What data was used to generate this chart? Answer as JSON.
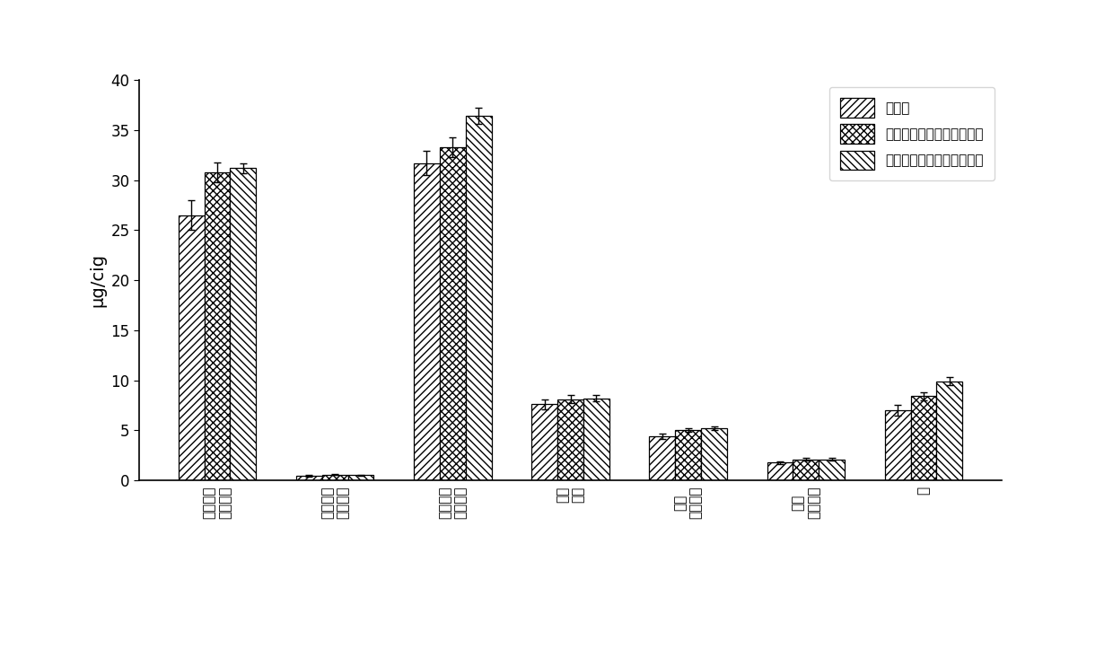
{
  "categories": [
    "苯二甲酬\n对苯二酔",
    "苯二甲酬\n对秋寅酔",
    "苯二甲酬\n对甲苯酔",
    "苯二\n甲酔",
    "苯二\n对苯二酔",
    "苯二\n对甲苯酔",
    "氨"
  ],
  "series": [
    {
      "name": "单滤片",
      "values": [
        26.5,
        0.45,
        31.7,
        7.6,
        4.4,
        1.75,
        7.0
      ],
      "errors": [
        1.5,
        0.05,
        1.2,
        0.5,
        0.3,
        0.15,
        0.5
      ]
    },
    {
      "name": "双滤片（预处理滤片后置）",
      "values": [
        30.8,
        0.55,
        33.3,
        8.1,
        5.0,
        2.1,
        8.4
      ],
      "errors": [
        1.0,
        0.05,
        1.0,
        0.4,
        0.2,
        0.15,
        0.4
      ]
    },
    {
      "name": "双滤片（预处理滤片前置）",
      "values": [
        31.2,
        0.52,
        36.4,
        8.2,
        5.2,
        2.1,
        9.9
      ],
      "errors": [
        0.5,
        0.05,
        0.8,
        0.3,
        0.2,
        0.1,
        0.4
      ]
    }
  ],
  "ylabel": "μg/cig",
  "ylim": [
    0,
    40
  ],
  "yticks": [
    0,
    5,
    10,
    15,
    20,
    25,
    30,
    35,
    40
  ],
  "bar_width": 0.22,
  "hatch_patterns": [
    "////",
    "xxxx",
    "\\\\\\\\"
  ],
  "bar_facecolor": "white",
  "bar_edgecolor": "black",
  "legend_loc": "upper right",
  "background_color": "white",
  "figsize": [
    12.4,
    7.43
  ],
  "dpi": 100
}
